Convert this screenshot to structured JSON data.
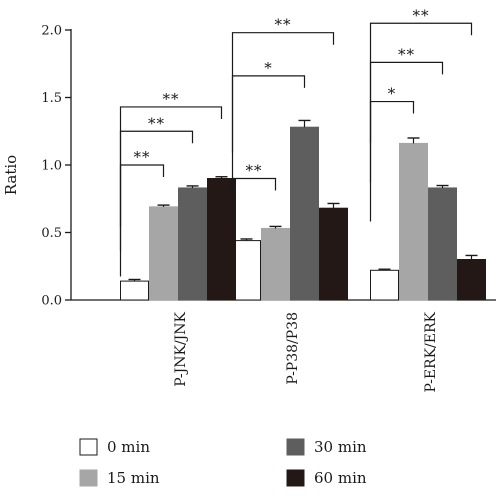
{
  "chart_data": {
    "type": "bar",
    "ylabel": "Ratio",
    "ylim": [
      0,
      2.0
    ],
    "yticks": [
      "0.0",
      "0.5",
      "1.0",
      "1.5",
      "2.0"
    ],
    "categories": [
      "P-JNK/JNK",
      "P-P38/P38",
      "P-ERK/ERK"
    ],
    "series": [
      {
        "name": "0 min",
        "color": "#ffffff",
        "values": [
          0.14,
          0.44,
          0.22
        ],
        "errors": [
          0.012,
          0.012,
          0.008
        ]
      },
      {
        "name": "15 min",
        "color": "#a6a6a6",
        "values": [
          0.69,
          0.53,
          1.16
        ],
        "errors": [
          0.013,
          0.015,
          0.04
        ]
      },
      {
        "name": "30 min",
        "color": "#5e5e5e",
        "values": [
          0.83,
          1.28,
          0.83
        ],
        "errors": [
          0.015,
          0.05,
          0.018
        ]
      },
      {
        "name": "60 min",
        "color": "#231815",
        "values": [
          0.9,
          0.68,
          0.3
        ],
        "errors": [
          0.013,
          0.035,
          0.03
        ]
      }
    ],
    "significance": [
      {
        "group": 0,
        "from": 0,
        "to": 1,
        "y": 1.0,
        "label": "**"
      },
      {
        "group": 0,
        "from": 0,
        "to": 2,
        "y": 1.25,
        "label": "**"
      },
      {
        "group": 0,
        "from": 0,
        "to": 3,
        "y": 1.43,
        "label": "**"
      },
      {
        "group": 1,
        "from": 0,
        "to": 1,
        "y": 0.9,
        "label": "**"
      },
      {
        "group": 1,
        "from": 0,
        "to": 2,
        "y": 1.66,
        "label": "*"
      },
      {
        "group": 1,
        "from": 0,
        "to": 3,
        "y": 1.98,
        "label": "**"
      },
      {
        "group": 2,
        "from": 0,
        "to": 1,
        "y": 1.47,
        "label": "*"
      },
      {
        "group": 2,
        "from": 0,
        "to": 2,
        "y": 1.76,
        "label": "**"
      },
      {
        "group": 2,
        "from": 0,
        "to": 3,
        "y": 2.05,
        "label": "**"
      }
    ],
    "legend": "bottom"
  }
}
